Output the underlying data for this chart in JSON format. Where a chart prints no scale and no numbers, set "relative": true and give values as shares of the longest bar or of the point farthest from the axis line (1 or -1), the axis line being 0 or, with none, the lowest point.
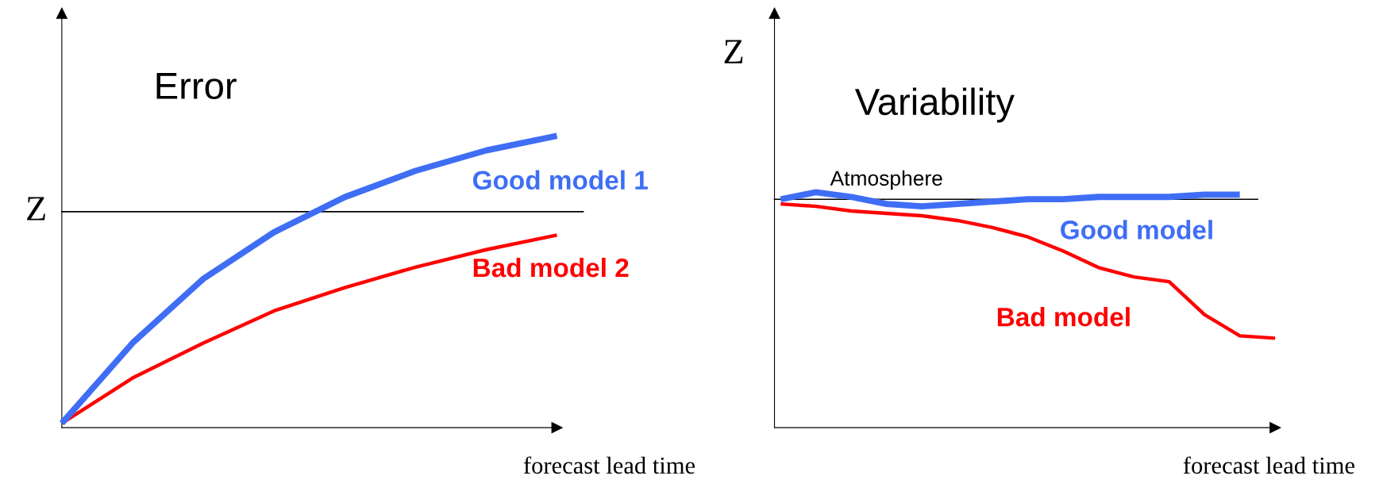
{
  "chart_data": [
    {
      "type": "line",
      "title": "Error",
      "xlabel": "forecast lead time",
      "relative": true,
      "categories": [
        null,
        null,
        null,
        null,
        null,
        null,
        null,
        null
      ],
      "series": [
        {
          "name": "Good model 1",
          "color": "#3f6ef5",
          "values": [
            0.015,
            0.29,
            0.51,
            0.67,
            0.79,
            0.88,
            0.95,
            1.0
          ]
        },
        {
          "name": "Bad model 2",
          "color": "#ff0000",
          "values": [
            0.015,
            0.17,
            0.29,
            0.4,
            0.48,
            0.55,
            0.61,
            0.66
          ]
        }
      ],
      "ref_lines": [
        {
          "axis": "y",
          "value": 0.74,
          "label": "Z",
          "color": "#000000"
        }
      ]
    },
    {
      "type": "line",
      "title": "Variability",
      "xlabel": "forecast lead time",
      "ylabel": "Z",
      "relative": true,
      "categories": [
        null,
        null,
        null,
        null,
        null,
        null,
        null,
        null,
        null,
        null,
        null,
        null,
        null,
        null,
        null
      ],
      "series": [
        {
          "name": "Good model",
          "color": "#3f6ef5",
          "values": [
            0.97,
            1.0,
            0.98,
            0.95,
            0.94,
            0.95,
            0.96,
            0.97,
            0.97,
            0.98,
            0.98,
            0.98,
            0.99,
            0.99,
            null
          ]
        },
        {
          "name": "Bad model",
          "color": "#ff0000",
          "values": [
            0.95,
            0.94,
            0.92,
            0.91,
            0.9,
            0.88,
            0.85,
            0.81,
            0.75,
            0.68,
            0.64,
            0.62,
            0.48,
            0.39,
            0.38
          ]
        }
      ],
      "ref_lines": [
        {
          "axis": "y",
          "value": 0.97,
          "label": "Atmosphere",
          "color": "#000000"
        }
      ]
    }
  ]
}
